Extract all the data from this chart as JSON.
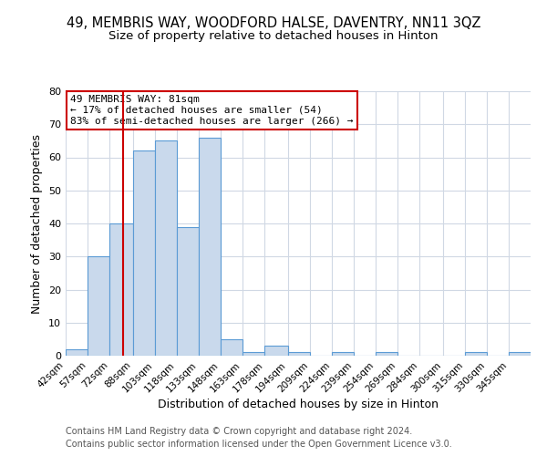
{
  "title": "49, MEMBRIS WAY, WOODFORD HALSE, DAVENTRY, NN11 3QZ",
  "subtitle": "Size of property relative to detached houses in Hinton",
  "xlabel": "Distribution of detached houses by size in Hinton",
  "ylabel": "Number of detached properties",
  "bar_labels": [
    "42sqm",
    "57sqm",
    "72sqm",
    "88sqm",
    "103sqm",
    "118sqm",
    "133sqm",
    "148sqm",
    "163sqm",
    "178sqm",
    "194sqm",
    "209sqm",
    "224sqm",
    "239sqm",
    "254sqm",
    "269sqm",
    "284sqm",
    "300sqm",
    "315sqm",
    "330sqm",
    "345sqm"
  ],
  "bar_heights": [
    2,
    30,
    40,
    62,
    65,
    39,
    66,
    5,
    1,
    3,
    1,
    0,
    1,
    0,
    1,
    0,
    0,
    0,
    1,
    0,
    1
  ],
  "bar_edges": [
    42,
    57,
    72,
    88,
    103,
    118,
    133,
    148,
    163,
    178,
    194,
    209,
    224,
    239,
    254,
    269,
    284,
    300,
    315,
    330,
    345,
    360
  ],
  "bar_color": "#c9d9ec",
  "bar_edgecolor": "#5b9bd5",
  "vline_x": 81,
  "vline_color": "#cc0000",
  "ylim": [
    0,
    80
  ],
  "yticks": [
    0,
    10,
    20,
    30,
    40,
    50,
    60,
    70,
    80
  ],
  "annotation_title": "49 MEMBRIS WAY: 81sqm",
  "annotation_line1": "← 17% of detached houses are smaller (54)",
  "annotation_line2": "83% of semi-detached houses are larger (266) →",
  "annotation_box_color": "#ffffff",
  "annotation_box_edgecolor": "#cc0000",
  "footer1": "Contains HM Land Registry data © Crown copyright and database right 2024.",
  "footer2": "Contains public sector information licensed under the Open Government Licence v3.0.",
  "background_color": "#ffffff",
  "grid_color": "#d0d8e4",
  "title_fontsize": 10.5,
  "subtitle_fontsize": 9.5,
  "footer_fontsize": 7.0
}
